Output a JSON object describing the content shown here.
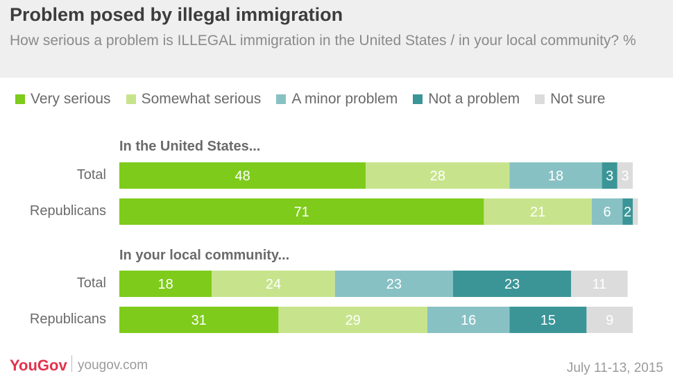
{
  "header": {
    "title": "Problem posed by illegal immigration",
    "subtitle": "How serious a problem is ILLEGAL immigration in the United States / in your local community? %"
  },
  "colors": {
    "very_serious": "#7ecb1b",
    "somewhat_serious": "#c7e48c",
    "minor_problem": "#88c1c4",
    "not_a_problem": "#3b9597",
    "not_sure": "#dcdcdc",
    "header_bg": "#efefef",
    "brand": "#e3314b"
  },
  "chart_data": {
    "type": "bar",
    "orientation": "horizontal",
    "stacked": true,
    "title": "Problem posed by illegal immigration",
    "subtitle": "How serious a problem is ILLEGAL immigration in the United States / in your local community? %",
    "xlim": [
      0,
      100
    ],
    "legend_position": "top",
    "grid": false,
    "series_names": [
      "Very serious",
      "Somewhat serious",
      "A minor problem",
      "Not a problem",
      "Not sure"
    ],
    "groups": [
      {
        "title": "In the United States...",
        "rows": [
          {
            "label": "Total",
            "values": [
              48,
              28,
              18,
              3,
              3
            ]
          },
          {
            "label": "Republicans",
            "values": [
              71,
              21,
              6,
              2,
              1
            ]
          }
        ]
      },
      {
        "title": "In your local community...",
        "rows": [
          {
            "label": "Total",
            "values": [
              18,
              24,
              23,
              23,
              11
            ]
          },
          {
            "label": "Republicans",
            "values": [
              31,
              29,
              16,
              15,
              9
            ]
          }
        ]
      }
    ],
    "value_labels": [
      [
        [
          "48",
          "28",
          "18",
          "3",
          "3"
        ],
        [
          "71",
          "21",
          "6",
          "2",
          ""
        ]
      ],
      [
        [
          "18",
          "24",
          "23",
          "23",
          "11"
        ],
        [
          "31",
          "29",
          "16",
          "15",
          "9"
        ]
      ]
    ]
  },
  "footer": {
    "logo": "YouGov",
    "site": "yougov.com",
    "date": "July 11-13, 2015"
  }
}
